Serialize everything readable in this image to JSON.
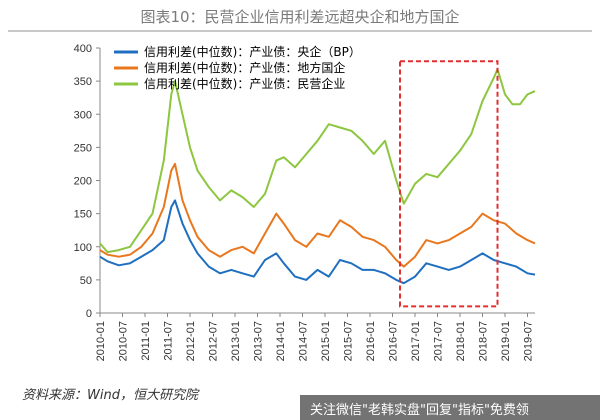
{
  "title": "图表10：民营企业信用利差远超央企和地方国企",
  "source": "资料来源：Wind，恒大研究院",
  "footer": "关注微信\"老韩实盘\"回复\"指标\"免费领",
  "chart_data": {
    "type": "line",
    "ylim": [
      0,
      400
    ],
    "yticks": [
      0,
      50,
      100,
      150,
      200,
      250,
      300,
      350,
      400
    ],
    "x_start": "2010-01",
    "x_end": "2019-09",
    "xticks": [
      "2010-01",
      "2010-07",
      "2011-01",
      "2011-07",
      "2012-01",
      "2012-07",
      "2013-01",
      "2013-07",
      "2014-01",
      "2014-07",
      "2015-01",
      "2015-07",
      "2016-01",
      "2016-07",
      "2017-01",
      "2017-07",
      "2018-01",
      "2018-07",
      "2019-01",
      "2019-07"
    ],
    "legend_position": "top-left",
    "highlight_box": {
      "x_from": "2016-09",
      "x_to": "2018-11",
      "y_from": 10,
      "y_to": 380,
      "color": "#e03030"
    },
    "series": [
      {
        "name": "信用利差(中位数)：产业债：央企（BP）",
        "color": "#1f6fc0",
        "points": [
          [
            "2010-01",
            85
          ],
          [
            "2010-03",
            78
          ],
          [
            "2010-06",
            72
          ],
          [
            "2010-09",
            75
          ],
          [
            "2010-12",
            85
          ],
          [
            "2011-03",
            95
          ],
          [
            "2011-06",
            110
          ],
          [
            "2011-08",
            160
          ],
          [
            "2011-09",
            170
          ],
          [
            "2011-11",
            135
          ],
          [
            "2012-01",
            110
          ],
          [
            "2012-03",
            90
          ],
          [
            "2012-06",
            70
          ],
          [
            "2012-09",
            60
          ],
          [
            "2012-12",
            65
          ],
          [
            "2013-03",
            60
          ],
          [
            "2013-06",
            55
          ],
          [
            "2013-09",
            80
          ],
          [
            "2013-12",
            90
          ],
          [
            "2014-02",
            75
          ],
          [
            "2014-05",
            55
          ],
          [
            "2014-08",
            50
          ],
          [
            "2014-11",
            65
          ],
          [
            "2015-02",
            55
          ],
          [
            "2015-05",
            80
          ],
          [
            "2015-08",
            75
          ],
          [
            "2015-11",
            65
          ],
          [
            "2016-02",
            65
          ],
          [
            "2016-05",
            60
          ],
          [
            "2016-08",
            50
          ],
          [
            "2016-10",
            45
          ],
          [
            "2017-01",
            55
          ],
          [
            "2017-04",
            75
          ],
          [
            "2017-07",
            70
          ],
          [
            "2017-10",
            65
          ],
          [
            "2018-01",
            70
          ],
          [
            "2018-04",
            80
          ],
          [
            "2018-07",
            90
          ],
          [
            "2018-10",
            80
          ],
          [
            "2019-01",
            75
          ],
          [
            "2019-04",
            70
          ],
          [
            "2019-07",
            60
          ],
          [
            "2019-09",
            58
          ]
        ]
      },
      {
        "name": "信用利差(中位数)：产业债：地方国企",
        "color": "#e8771e",
        "points": [
          [
            "2010-01",
            95
          ],
          [
            "2010-03",
            88
          ],
          [
            "2010-06",
            85
          ],
          [
            "2010-09",
            88
          ],
          [
            "2010-12",
            100
          ],
          [
            "2011-03",
            120
          ],
          [
            "2011-06",
            160
          ],
          [
            "2011-08",
            215
          ],
          [
            "2011-09",
            225
          ],
          [
            "2011-11",
            170
          ],
          [
            "2012-01",
            140
          ],
          [
            "2012-03",
            115
          ],
          [
            "2012-06",
            95
          ],
          [
            "2012-09",
            85
          ],
          [
            "2012-12",
            95
          ],
          [
            "2013-03",
            100
          ],
          [
            "2013-06",
            90
          ],
          [
            "2013-09",
            120
          ],
          [
            "2013-12",
            150
          ],
          [
            "2014-02",
            135
          ],
          [
            "2014-05",
            110
          ],
          [
            "2014-08",
            100
          ],
          [
            "2014-11",
            120
          ],
          [
            "2015-02",
            115
          ],
          [
            "2015-05",
            140
          ],
          [
            "2015-08",
            130
          ],
          [
            "2015-11",
            115
          ],
          [
            "2016-02",
            110
          ],
          [
            "2016-05",
            100
          ],
          [
            "2016-08",
            80
          ],
          [
            "2016-10",
            70
          ],
          [
            "2017-01",
            85
          ],
          [
            "2017-04",
            110
          ],
          [
            "2017-07",
            105
          ],
          [
            "2017-10",
            110
          ],
          [
            "2018-01",
            120
          ],
          [
            "2018-04",
            130
          ],
          [
            "2018-07",
            150
          ],
          [
            "2018-10",
            140
          ],
          [
            "2019-01",
            135
          ],
          [
            "2019-04",
            120
          ],
          [
            "2019-07",
            110
          ],
          [
            "2019-09",
            105
          ]
        ]
      },
      {
        "name": "信用利差(中位数)：产业债：民营企业",
        "color": "#8dc63f",
        "points": [
          [
            "2010-01",
            105
          ],
          [
            "2010-03",
            92
          ],
          [
            "2010-06",
            95
          ],
          [
            "2010-09",
            100
          ],
          [
            "2010-12",
            125
          ],
          [
            "2011-03",
            150
          ],
          [
            "2011-06",
            230
          ],
          [
            "2011-08",
            330
          ],
          [
            "2011-09",
            350
          ],
          [
            "2011-11",
            300
          ],
          [
            "2012-01",
            250
          ],
          [
            "2012-03",
            215
          ],
          [
            "2012-06",
            190
          ],
          [
            "2012-09",
            170
          ],
          [
            "2012-12",
            185
          ],
          [
            "2013-03",
            175
          ],
          [
            "2013-06",
            160
          ],
          [
            "2013-09",
            180
          ],
          [
            "2013-12",
            230
          ],
          [
            "2014-02",
            235
          ],
          [
            "2014-05",
            220
          ],
          [
            "2014-08",
            240
          ],
          [
            "2014-11",
            260
          ],
          [
            "2015-02",
            285
          ],
          [
            "2015-05",
            280
          ],
          [
            "2015-08",
            275
          ],
          [
            "2015-11",
            260
          ],
          [
            "2016-02",
            240
          ],
          [
            "2016-05",
            260
          ],
          [
            "2016-08",
            200
          ],
          [
            "2016-10",
            165
          ],
          [
            "2017-01",
            195
          ],
          [
            "2017-04",
            210
          ],
          [
            "2017-07",
            205
          ],
          [
            "2017-10",
            225
          ],
          [
            "2018-01",
            245
          ],
          [
            "2018-04",
            270
          ],
          [
            "2018-07",
            320
          ],
          [
            "2018-10",
            355
          ],
          [
            "2018-11",
            368
          ],
          [
            "2019-01",
            330
          ],
          [
            "2019-03",
            315
          ],
          [
            "2019-05",
            315
          ],
          [
            "2019-07",
            330
          ],
          [
            "2019-09",
            335
          ]
        ]
      }
    ]
  }
}
